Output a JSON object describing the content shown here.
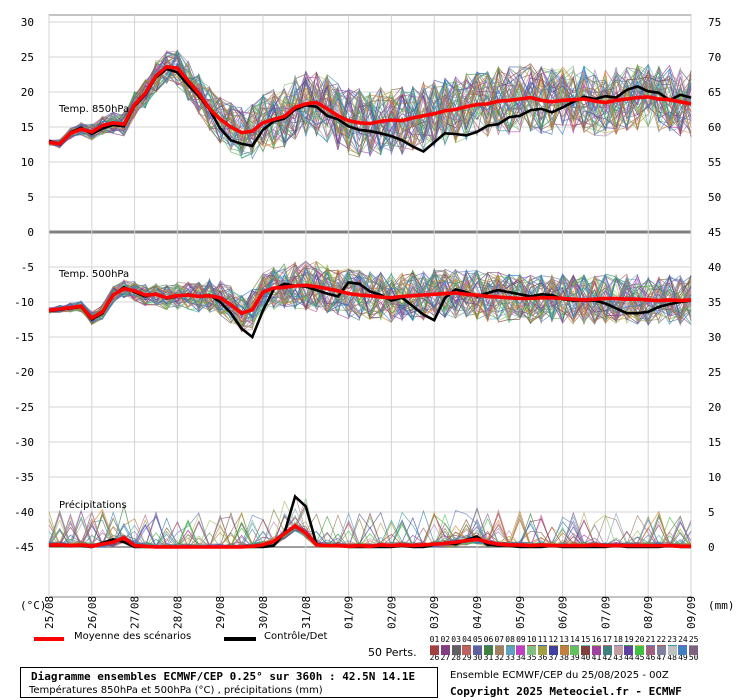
{
  "chart_data": {
    "type": "line",
    "left_axis_unit": "(°C)",
    "right_axis_unit": "(mm)",
    "left_ticks": [
      "30",
      "25",
      "20",
      "15",
      "10",
      "5",
      "0",
      "-5",
      "-10",
      "-15",
      "-20",
      "-25",
      "-30",
      "-35",
      "-40",
      "-45"
    ],
    "right_ticks": [
      "75",
      "70",
      "65",
      "60",
      "55",
      "50",
      "45",
      "40",
      "35",
      "30",
      "25",
      "20",
      "15",
      "10",
      "5",
      "0"
    ],
    "dates": [
      "25/08",
      "26/08",
      "27/08",
      "28/08",
      "29/08",
      "30/08",
      "31/08",
      "01/09",
      "02/09",
      "03/09",
      "04/09",
      "05/09",
      "06/09",
      "07/09",
      "08/09",
      "09/09"
    ],
    "panels": [
      {
        "label": "Temp. 850hPa",
        "x": [
          0,
          0.25,
          0.5,
          0.75,
          1,
          1.25,
          1.5,
          1.75,
          2,
          2.25,
          2.5,
          2.75,
          3,
          3.25,
          3.5,
          3.75,
          4,
          4.25,
          4.5,
          4.75,
          5,
          5.25,
          5.5,
          5.75,
          6,
          6.25,
          6.5,
          6.75,
          7,
          7.25,
          7.5,
          7.75,
          8,
          8.25,
          8.5,
          8.75,
          9,
          9.25,
          9.5,
          9.75,
          10,
          10.25,
          10.5,
          10.75,
          11,
          11.25,
          11.5,
          11.75,
          12,
          12.25,
          12.5,
          12.75,
          13,
          13.25,
          13.5,
          13.75,
          14,
          14.25,
          14.5,
          14.75,
          15
        ],
        "mean": [
          12.8,
          12.6,
          14.1,
          14.7,
          14.3,
          15.2,
          15.6,
          15.4,
          18.2,
          19.8,
          22.3,
          23.6,
          23.4,
          21.6,
          19.8,
          17.6,
          16.1,
          15.0,
          14.2,
          14.4,
          15.6,
          16.1,
          16.5,
          17.8,
          18.3,
          18.5,
          17.6,
          16.6,
          15.9,
          15.6,
          15.5,
          15.8,
          16.0,
          15.9,
          16.3,
          16.6,
          16.9,
          17.3,
          17.5,
          17.9,
          18.2,
          18.3,
          18.7,
          18.8,
          19.0,
          19.2,
          18.8,
          18.6,
          18.8,
          18.9,
          19.0,
          18.7,
          18.5,
          18.8,
          19.0,
          19.2,
          19.3,
          19.0,
          18.9,
          18.6,
          18.3
        ],
        "control": [
          13.0,
          12.5,
          14.2,
          14.9,
          14.0,
          14.8,
          15.3,
          15.1,
          18.0,
          19.6,
          22.1,
          23.3,
          22.8,
          21.0,
          19.4,
          17.5,
          14.8,
          13.1,
          12.6,
          12.3,
          14.6,
          15.8,
          16.2,
          17.5,
          18.1,
          17.9,
          16.6,
          16.1,
          15.1,
          14.6,
          14.4,
          14.1,
          13.7,
          13.1,
          12.2,
          11.5,
          12.8,
          14.1,
          14.0,
          13.8,
          14.3,
          15.2,
          15.4,
          16.4,
          16.6,
          17.4,
          17.6,
          17.1,
          17.8,
          18.6,
          19.3,
          19.0,
          19.4,
          19.2,
          20.3,
          20.8,
          20.1,
          19.9,
          18.8,
          19.6,
          19.2
        ]
      },
      {
        "label": "Temp. 500hPa",
        "x": [
          0,
          0.25,
          0.5,
          0.75,
          1,
          1.25,
          1.5,
          1.75,
          2,
          2.25,
          2.5,
          2.75,
          3,
          3.25,
          3.5,
          3.75,
          4,
          4.25,
          4.5,
          4.75,
          5,
          5.25,
          5.5,
          5.75,
          6,
          6.25,
          6.5,
          6.75,
          7,
          7.25,
          7.5,
          7.75,
          8,
          8.25,
          8.5,
          8.75,
          9,
          9.25,
          9.5,
          9.75,
          10,
          10.25,
          10.5,
          10.75,
          11,
          11.25,
          11.5,
          11.75,
          12,
          12.25,
          12.5,
          12.75,
          13,
          13.25,
          13.5,
          13.75,
          14,
          14.25,
          14.5,
          14.75,
          15
        ],
        "mean": [
          -11.2,
          -11.0,
          -10.8,
          -10.6,
          -12.3,
          -11.4,
          -9.0,
          -8.1,
          -8.4,
          -9.0,
          -8.9,
          -9.4,
          -9.1,
          -9.0,
          -9.2,
          -9.1,
          -9.4,
          -10.4,
          -11.6,
          -11.1,
          -8.6,
          -8.0,
          -7.9,
          -7.7,
          -7.6,
          -7.8,
          -8.1,
          -8.4,
          -8.8,
          -9.0,
          -9.1,
          -9.3,
          -9.4,
          -9.2,
          -9.1,
          -9.0,
          -8.9,
          -8.8,
          -8.7,
          -8.9,
          -9.0,
          -9.2,
          -9.3,
          -9.4,
          -9.5,
          -9.5,
          -9.4,
          -9.4,
          -9.5,
          -9.6,
          -9.7,
          -9.6,
          -9.5,
          -9.5,
          -9.6,
          -9.6,
          -9.7,
          -9.8,
          -9.7,
          -9.8,
          -9.7
        ],
        "control": [
          -11.3,
          -11.1,
          -10.9,
          -10.7,
          -12.5,
          -11.6,
          -9.1,
          -7.9,
          -8.6,
          -9.2,
          -8.8,
          -9.5,
          -9.2,
          -8.9,
          -9.3,
          -9.0,
          -10.0,
          -11.6,
          -13.8,
          -15.0,
          -11.2,
          -8.2,
          -7.4,
          -7.7,
          -7.8,
          -8.3,
          -8.8,
          -9.2,
          -7.2,
          -7.4,
          -8.5,
          -9.0,
          -9.8,
          -9.4,
          -10.6,
          -11.8,
          -12.6,
          -9.4,
          -8.2,
          -8.6,
          -9.2,
          -8.7,
          -8.3,
          -8.6,
          -8.9,
          -9.2,
          -8.9,
          -9.0,
          -9.6,
          -9.8,
          -9.8,
          -9.8,
          -10.2,
          -10.9,
          -11.6,
          -11.6,
          -11.4,
          -10.7,
          -10.3,
          -10.0,
          -9.8
        ]
      },
      {
        "label": "Précipitations",
        "unit": "mm",
        "x": [
          0,
          0.25,
          0.5,
          0.75,
          1,
          1.25,
          1.5,
          1.75,
          2,
          2.25,
          2.5,
          2.75,
          3,
          3.25,
          3.5,
          3.75,
          4,
          4.25,
          4.5,
          4.75,
          5,
          5.25,
          5.5,
          5.75,
          6,
          6.25,
          6.5,
          6.75,
          7,
          7.25,
          7.5,
          7.75,
          8,
          8.25,
          8.5,
          8.75,
          9,
          9.25,
          9.5,
          9.75,
          10,
          10.25,
          10.5,
          10.75,
          11,
          11.25,
          11.5,
          11.75,
          12,
          12.25,
          12.5,
          12.75,
          13,
          13.25,
          13.5,
          13.75,
          14,
          14.25,
          14.5,
          14.75,
          15
        ],
        "mean": [
          0.3,
          0.3,
          0.2,
          0.3,
          0.1,
          0.4,
          0.7,
          1.3,
          0.2,
          0.1,
          0,
          0,
          0,
          0,
          0,
          0,
          0,
          0,
          0,
          0.1,
          0.3,
          0.8,
          1.9,
          3.0,
          2.0,
          0.3,
          0.2,
          0.2,
          0.1,
          0.2,
          0.1,
          0.3,
          0.2,
          0.3,
          0.2,
          0.3,
          0.4,
          0.5,
          0.7,
          0.9,
          1.1,
          0.7,
          0.4,
          0.3,
          0.3,
          0.2,
          0.3,
          0.2,
          0.2,
          0.2,
          0.2,
          0.3,
          0.2,
          0.2,
          0.2,
          0.2,
          0.2,
          0.2,
          0.2,
          0.1,
          0.1
        ],
        "control": [
          0.2,
          0.2,
          0.2,
          0.2,
          0,
          0.6,
          1.1,
          0.7,
          0,
          0,
          0,
          0,
          0,
          0,
          0,
          0,
          0,
          0,
          0,
          0,
          0,
          0.2,
          2.0,
          7.2,
          5.8,
          0.4,
          0.2,
          0.2,
          0,
          0,
          0,
          0,
          0,
          0.2,
          0,
          0,
          0.3,
          0.6,
          0.4,
          1.0,
          1.5,
          0.3,
          0.2,
          0.2,
          0,
          0,
          0,
          0.2,
          0,
          0,
          0,
          0,
          0,
          0.2,
          0,
          0,
          0,
          0,
          0.2,
          0,
          0
        ]
      }
    ],
    "legend": {
      "mean_label": "Moyenne des scénarios",
      "mean_color": "#ff0000",
      "control_label": "Contrôle/Det",
      "control_color": "#000000",
      "perts_label": "50 Perts.",
      "perts_row1": [
        "01",
        "02",
        "03",
        "04",
        "05",
        "06",
        "07",
        "08",
        "09",
        "10",
        "11",
        "12",
        "13",
        "14",
        "15",
        "16",
        "17",
        "18",
        "19",
        "20",
        "21",
        "22",
        "23",
        "24",
        "25"
      ],
      "perts_row2": [
        "26",
        "27",
        "28",
        "29",
        "30",
        "31",
        "32",
        "33",
        "34",
        "35",
        "36",
        "37",
        "38",
        "39",
        "40",
        "41",
        "42",
        "43",
        "44",
        "45",
        "46",
        "47",
        "48",
        "49",
        "50"
      ],
      "perts_colors_row1": [
        "#c08080",
        "#a04080",
        "#8060a0",
        "#806040",
        "#80a0c0",
        "#4080a0",
        "#a0a0a0",
        "#60a060",
        "#c080c0",
        "#a06060",
        "#4060c0",
        "#c0a060",
        "#808040",
        "#a080c0",
        "#60c0a0",
        "#a0c060",
        "#c06080",
        "#8080c0",
        "#40a040",
        "#c0c060",
        "#6080c0",
        "#a06040",
        "#40a0a0",
        "#8060c0",
        "#a0a0a0"
      ],
      "perts_colors_row2": [
        "#a04040",
        "#804080",
        "#606060",
        "#c06060",
        "#6060a0",
        "#408040",
        "#a08060",
        "#60a0c0",
        "#c040c0",
        "#80c080",
        "#a0a040",
        "#4040a0",
        "#c08040",
        "#60c060",
        "#804040",
        "#a040a0",
        "#408080",
        "#c0a0a0",
        "#6040a0",
        "#40c040",
        "#a06080",
        "#8080a0",
        "#c0c0c0",
        "#4080c0",
        "#806080"
      ]
    },
    "info": {
      "line1": "Diagramme ensembles ECMWF/CEP 0.25° sur 360h : 42.5N 14.1E",
      "line2": "Températures 850hPa et 500hPa (°C) , précipitations (mm)"
    },
    "credits": {
      "line1": "Ensemble ECMWF/CEP du 25/08/2025 - 00Z",
      "line2": "Copyright 2025 Meteociel.fr - ECMWF"
    }
  }
}
